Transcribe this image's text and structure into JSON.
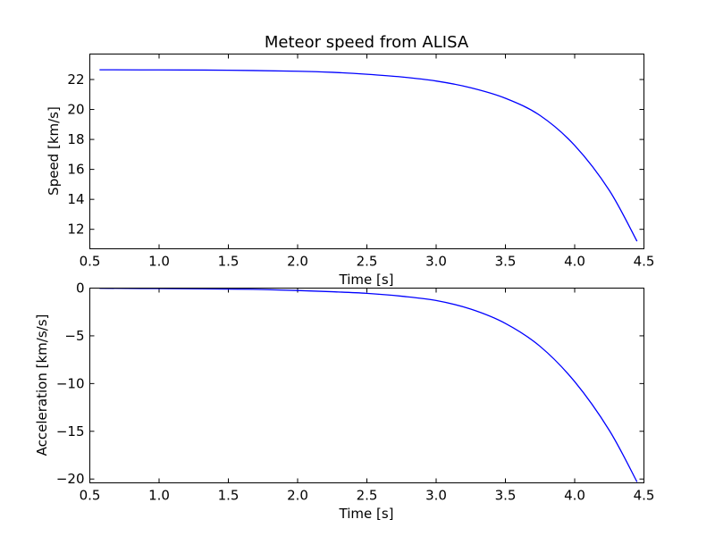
{
  "chart_data": [
    {
      "type": "line",
      "title": "Meteor speed from  ALISA",
      "xlabel": "Time [s]",
      "ylabel": "Speed [km/s]",
      "xlim": [
        0.5,
        4.5
      ],
      "ylim": [
        10.7,
        23.7
      ],
      "xticks": [
        "0.5",
        "1.0",
        "1.5",
        "2.0",
        "2.5",
        "3.0",
        "3.5",
        "4.0",
        "4.5"
      ],
      "yticks": [
        "12",
        "14",
        "16",
        "18",
        "20",
        "22"
      ],
      "grid": false,
      "series": [
        {
          "color": "#0000ff",
          "x": [
            0.57,
            1.0,
            1.5,
            2.0,
            2.25,
            2.5,
            2.75,
            3.0,
            3.25,
            3.5,
            3.75,
            4.0,
            4.25,
            4.45
          ],
          "y": [
            22.65,
            22.64,
            22.62,
            22.55,
            22.48,
            22.35,
            22.17,
            21.9,
            21.45,
            20.75,
            19.6,
            17.6,
            14.6,
            11.2
          ]
        }
      ]
    },
    {
      "type": "line",
      "title": "",
      "xlabel": "Time [s]",
      "ylabel": "Acceleration [km/s/s]",
      "xlim": [
        0.5,
        4.5
      ],
      "ylim": [
        -20.4,
        0
      ],
      "xticks": [
        "0.5",
        "1.0",
        "1.5",
        "2.0",
        "2.5",
        "3.0",
        "3.5",
        "4.0",
        "4.5"
      ],
      "yticks": [
        "0",
        "−5",
        "−10",
        "−15",
        "−20"
      ],
      "grid": false,
      "series": [
        {
          "color": "#0000ff",
          "x": [
            0.57,
            1.0,
            1.5,
            1.75,
            2.0,
            2.25,
            2.5,
            2.75,
            3.0,
            3.25,
            3.5,
            3.75,
            4.0,
            4.25,
            4.45
          ],
          "y": [
            -0.02,
            -0.05,
            -0.1,
            -0.15,
            -0.25,
            -0.38,
            -0.55,
            -0.85,
            -1.3,
            -2.2,
            -3.7,
            -6.1,
            -9.8,
            -14.9,
            -20.3
          ]
        }
      ]
    }
  ]
}
